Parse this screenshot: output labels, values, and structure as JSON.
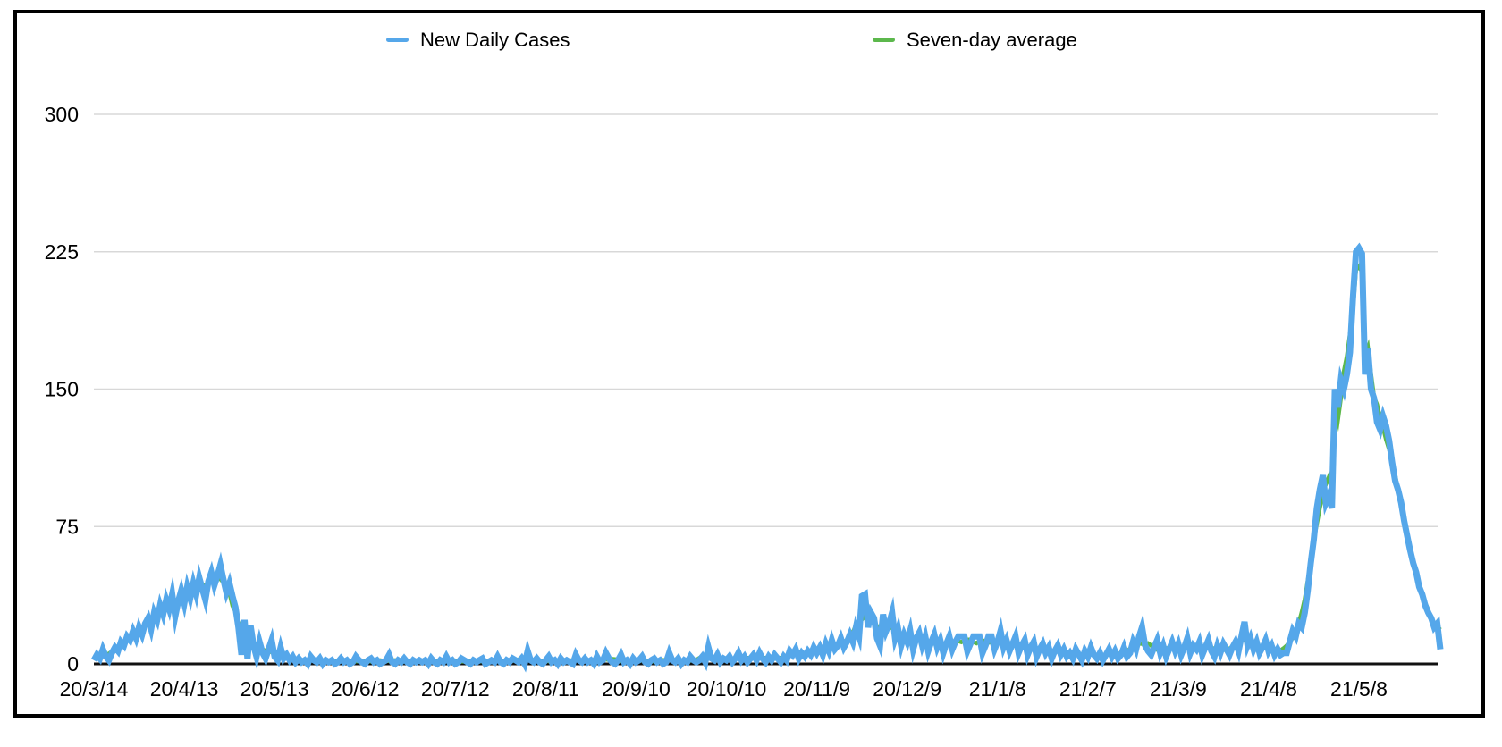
{
  "legend": {
    "daily_label": "New Daily Cases",
    "average_label": "Seven-day average"
  },
  "colors": {
    "daily": "#55a7ea",
    "average": "#5cb84c",
    "gridline": "#d8d8d8",
    "axis": "#111111",
    "frame": "#000000",
    "background": "#ffffff",
    "text": "#000000"
  },
  "chart_data": {
    "type": "line",
    "title": "",
    "x_start_date": "2020-03-14",
    "x_tick_interval_days": 30,
    "x_tick_labels": [
      "20/3/14",
      "20/4/13",
      "20/5/13",
      "20/6/12",
      "20/7/12",
      "20/8/11",
      "20/9/10",
      "20/10/10",
      "20/11/9",
      "20/12/9",
      "21/1/8",
      "21/2/7",
      "21/3/9",
      "21/4/8",
      "21/5/8"
    ],
    "y_ticks": [
      0,
      75,
      150,
      225,
      300
    ],
    "y_tick_labels": [
      "0",
      "75",
      "150",
      "225",
      "300"
    ],
    "ylim": [
      0,
      300
    ],
    "grid": true,
    "legend_position": "top",
    "series": [
      {
        "name": "New Daily Cases",
        "color": "#55a7ea",
        "values": [
          2,
          5,
          3,
          8,
          4,
          2,
          6,
          9,
          7,
          12,
          10,
          15,
          13,
          18,
          14,
          20,
          16,
          22,
          25,
          19,
          28,
          24,
          32,
          27,
          35,
          30,
          38,
          26,
          34,
          40,
          33,
          42,
          36,
          44,
          38,
          47,
          41,
          35,
          45,
          50,
          43,
          48,
          54,
          46,
          39,
          44,
          37,
          31,
          20,
          5,
          24,
          3,
          21,
          10,
          4,
          12,
          6,
          3,
          8,
          13,
          4,
          2,
          9,
          3,
          5,
          2,
          4,
          1,
          3,
          1,
          2,
          0,
          4,
          2,
          1,
          3,
          0,
          2,
          1,
          2,
          0,
          1,
          3,
          1,
          2,
          0,
          1,
          4,
          2,
          1,
          0,
          2,
          3,
          1,
          2,
          0,
          1,
          2,
          5,
          1,
          0,
          2,
          1,
          3,
          1,
          0,
          2,
          1,
          2,
          1,
          2,
          0,
          3,
          1,
          0,
          2,
          1,
          4,
          1,
          2,
          0,
          1,
          3,
          2,
          1,
          0,
          2,
          1,
          2,
          3,
          0,
          1,
          2,
          1,
          4,
          1,
          0,
          2,
          1,
          3,
          2,
          1,
          3,
          0,
          7,
          2,
          1,
          3,
          1,
          0,
          2,
          4,
          1,
          2,
          0,
          3,
          1,
          2,
          1,
          0,
          5,
          2,
          1,
          3,
          1,
          2,
          0,
          4,
          1,
          2,
          6,
          3,
          1,
          0,
          2,
          5,
          1,
          2,
          0,
          3,
          1,
          2,
          4,
          1,
          0,
          2,
          3,
          1,
          2,
          0,
          1,
          6,
          2,
          1,
          3,
          0,
          2,
          1,
          4,
          2,
          1,
          2,
          4,
          1,
          9,
          3,
          2,
          5,
          1,
          3,
          2,
          4,
          1,
          3,
          6,
          2,
          4,
          1,
          3,
          5,
          2,
          6,
          3,
          1,
          4,
          2,
          5,
          3,
          1,
          4,
          2,
          7,
          5,
          8,
          3,
          6,
          4,
          7,
          5,
          9,
          6,
          9,
          5,
          11,
          7,
          13,
          8,
          10,
          14,
          9,
          12,
          16,
          12,
          20,
          15,
          37,
          38,
          20,
          28,
          25,
          14,
          10,
          27,
          18,
          22,
          28,
          14,
          19,
          10,
          16,
          12,
          18,
          8,
          14,
          17,
          10,
          15,
          7,
          12,
          16,
          9,
          13,
          6,
          11,
          15,
          8,
          12,
          15,
          15,
          15,
          7,
          11,
          15,
          15,
          15,
          6,
          10,
          15,
          15,
          8,
          12,
          18,
          9,
          13,
          7,
          11,
          15,
          6,
          10,
          13,
          5,
          9,
          12,
          4,
          8,
          11,
          6,
          9,
          3,
          7,
          10,
          5,
          8,
          4,
          6,
          3,
          8,
          5,
          2,
          7,
          4,
          9,
          5,
          3,
          6,
          2,
          5,
          8,
          4,
          7,
          3,
          5,
          9,
          4,
          6,
          12,
          8,
          15,
          20,
          10,
          7,
          5,
          9,
          13,
          6,
          10,
          4,
          8,
          12,
          7,
          11,
          5,
          9,
          14,
          6,
          10,
          8,
          12,
          5,
          9,
          13,
          7,
          4,
          10,
          6,
          11,
          8,
          5,
          9,
          12,
          7,
          15,
          23,
          10,
          14,
          8,
          12,
          6,
          9,
          13,
          7,
          10,
          5,
          8,
          5,
          6,
          6,
          12,
          18,
          15,
          22,
          20,
          28,
          40,
          55,
          68,
          85,
          95,
          103,
          88,
          92,
          85,
          150,
          140,
          155,
          150,
          158,
          170,
          200,
          225,
          227,
          224,
          158,
          172,
          150,
          145,
          132,
          128,
          135,
          130,
          122,
          110,
          100,
          95,
          88,
          78,
          70,
          62,
          55,
          50,
          42,
          38,
          32,
          28,
          25,
          20,
          22,
          8
        ]
      },
      {
        "name": "Seven-day average",
        "color": "#5cb84c",
        "derived_from": "7-day average of New Daily Cases"
      }
    ]
  }
}
